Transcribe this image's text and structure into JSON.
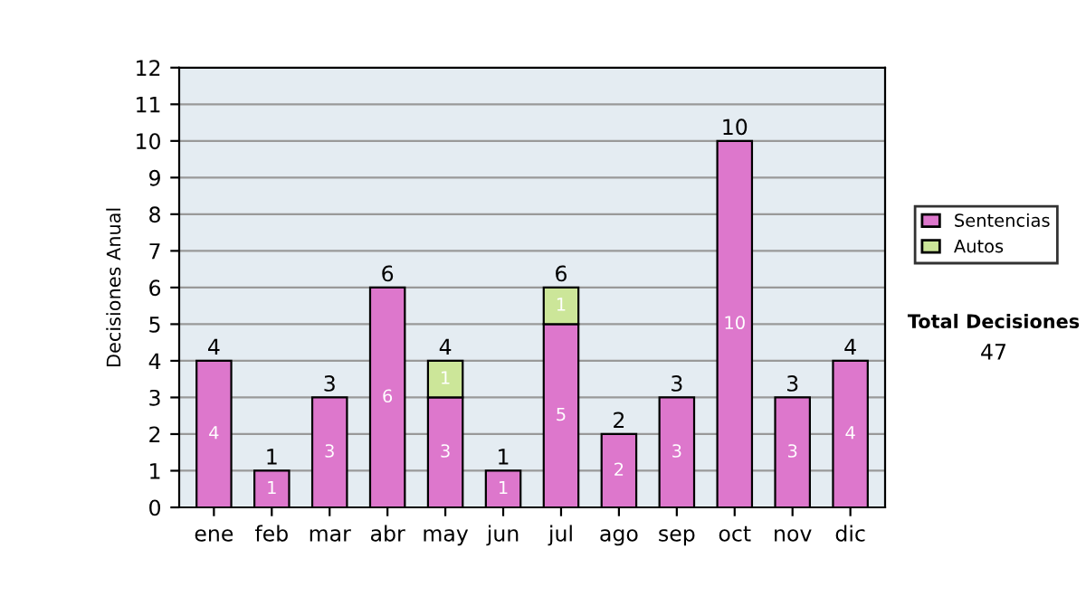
{
  "chart_data": {
    "type": "bar",
    "stacked": true,
    "ylabel": "Decisiones Anual",
    "categories": [
      "ene",
      "feb",
      "mar",
      "abr",
      "may",
      "jun",
      "jul",
      "ago",
      "sep",
      "oct",
      "nov",
      "dic"
    ],
    "series": [
      {
        "name": "Sentencias",
        "color": "#dd77cc",
        "values": [
          4,
          1,
          3,
          6,
          3,
          1,
          5,
          2,
          3,
          10,
          3,
          4
        ]
      },
      {
        "name": "Autos",
        "color": "#cce699",
        "values": [
          null,
          null,
          null,
          null,
          1,
          null,
          1,
          null,
          null,
          null,
          null,
          null
        ]
      }
    ],
    "totals": [
      "4",
      "1",
      "3",
      "6",
      "4",
      "1",
      "6",
      "2",
      "3",
      "10",
      "3",
      "4"
    ],
    "data_labels": true,
    "ylim": [
      0,
      12
    ],
    "yticks": [
      0,
      1,
      2,
      3,
      4,
      5,
      6,
      7,
      8,
      9,
      10,
      11,
      12
    ],
    "grid": "y",
    "legend": "right",
    "annotations": [
      "Total Decisiones",
      "47"
    ]
  }
}
